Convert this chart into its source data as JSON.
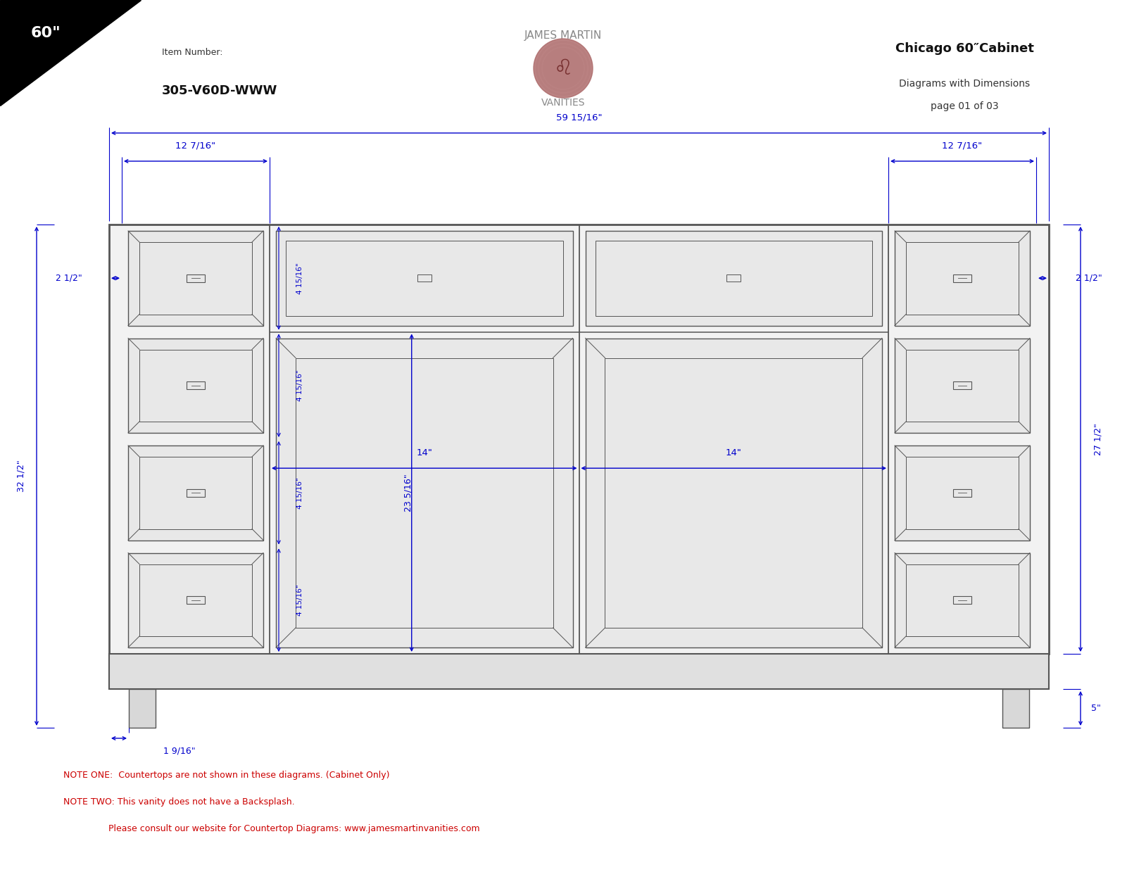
{
  "title_model": "Chicago 60″Cabinet",
  "item_number_label": "Item Number:",
  "item_number": "305-V60D-WWW",
  "brand_top": "JAMES MARTIN",
  "brand_bottom": "VANITIES",
  "note1": "NOTE ONE:  Countertops are not shown in these diagrams. (Cabinet Only)",
  "note2": "NOTE TWO: This vanity does not have a Backsplash.",
  "note3": "                Please consult our website for Countertop Diagrams: www.jamesmartinvanities.com",
  "dim_total_width": "59 15/16\"",
  "dim_left_drawer": "12 7/16\"",
  "dim_right_drawer": "12 7/16\"",
  "dim_left_offset": "2 1/2\"",
  "dim_right_offset": "2 1/2\"",
  "dim_door_left": "14\"",
  "dim_door_right": "14\"",
  "dim_door_height": "23 5/16\"",
  "dim_drawer_height": "4 15/16\"",
  "dim_total_height": "32 1/2\"",
  "dim_cabinet_height": "27 1/2\"",
  "dim_foot_height": "5\"",
  "dim_toe_kick": "1 9/16\"",
  "bg_color": "#ffffff",
  "line_color": "#555555",
  "dim_color": "#0000cc",
  "note_color": "#cc0000",
  "brand_color": "#888888"
}
